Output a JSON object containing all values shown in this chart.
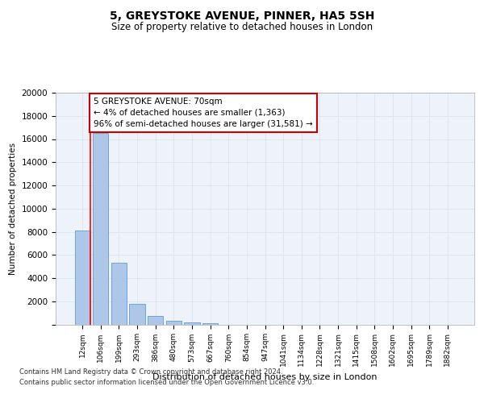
{
  "title": "5, GREYSTOKE AVENUE, PINNER, HA5 5SH",
  "subtitle": "Size of property relative to detached houses in London",
  "xlabel": "Distribution of detached houses by size in London",
  "ylabel": "Number of detached properties",
  "bar_labels": [
    "12sqm",
    "106sqm",
    "199sqm",
    "293sqm",
    "386sqm",
    "480sqm",
    "573sqm",
    "667sqm",
    "760sqm",
    "854sqm",
    "947sqm",
    "1041sqm",
    "1134sqm",
    "1228sqm",
    "1321sqm",
    "1415sqm",
    "1508sqm",
    "1602sqm",
    "1695sqm",
    "1789sqm",
    "1882sqm"
  ],
  "bar_values": [
    8100,
    16500,
    5300,
    1800,
    700,
    280,
    175,
    100,
    0,
    0,
    0,
    0,
    0,
    0,
    0,
    0,
    0,
    0,
    0,
    0,
    0
  ],
  "bar_color": "#aec6e8",
  "bar_edge_color": "#5a9fd4",
  "grid_color": "#dce6f0",
  "background_color": "#eef3fb",
  "annotation_box_text": "5 GREYSTOKE AVENUE: 70sqm\n← 4% of detached houses are smaller (1,363)\n96% of semi-detached houses are larger (31,581) →",
  "annotation_box_color": "#ffffff",
  "annotation_box_edge": "#cc0000",
  "ylim": [
    0,
    20000
  ],
  "yticks": [
    0,
    2000,
    4000,
    6000,
    8000,
    10000,
    12000,
    14000,
    16000,
    18000,
    20000
  ],
  "footer_line1": "Contains HM Land Registry data © Crown copyright and database right 2024.",
  "footer_line2": "Contains public sector information licensed under the Open Government Licence v3.0."
}
